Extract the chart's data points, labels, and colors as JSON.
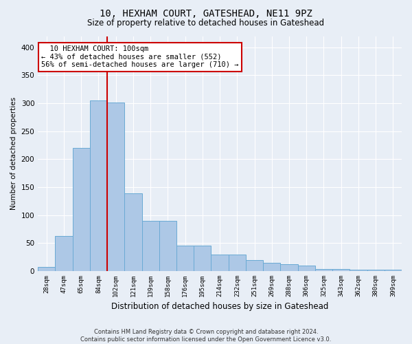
{
  "title": "10, HEXHAM COURT, GATESHEAD, NE11 9PZ",
  "subtitle": "Size of property relative to detached houses in Gateshead",
  "xlabel": "Distribution of detached houses by size in Gateshead",
  "ylabel": "Number of detached properties",
  "footer_line1": "Contains HM Land Registry data © Crown copyright and database right 2024.",
  "footer_line2": "Contains public sector information licensed under the Open Government Licence v3.0.",
  "annotation_line1": "10 HEXHAM COURT: 100sqm",
  "annotation_line2": "← 43% of detached houses are smaller (552)",
  "annotation_line3": "56% of semi-detached houses are larger (710) →",
  "bar_color": "#adc8e6",
  "bar_edge_color": "#6aaad4",
  "background_color": "#e8eef6",
  "grid_color": "#ffffff",
  "red_line_color": "#cc0000",
  "annotation_box_color": "#ffffff",
  "annotation_box_edge": "#cc0000",
  "categories": [
    "28sqm",
    "47sqm",
    "65sqm",
    "84sqm",
    "102sqm",
    "121sqm",
    "139sqm",
    "158sqm",
    "176sqm",
    "195sqm",
    "214sqm",
    "232sqm",
    "251sqm",
    "269sqm",
    "288sqm",
    "306sqm",
    "325sqm",
    "343sqm",
    "362sqm",
    "380sqm",
    "399sqm"
  ],
  "values": [
    8,
    63,
    220,
    305,
    301,
    139,
    90,
    90,
    46,
    46,
    30,
    30,
    20,
    15,
    12,
    10,
    4,
    4,
    3,
    2,
    3
  ],
  "ylim": [
    0,
    420
  ],
  "yticks": [
    0,
    50,
    100,
    150,
    200,
    250,
    300,
    350,
    400
  ],
  "red_line_index": 4
}
